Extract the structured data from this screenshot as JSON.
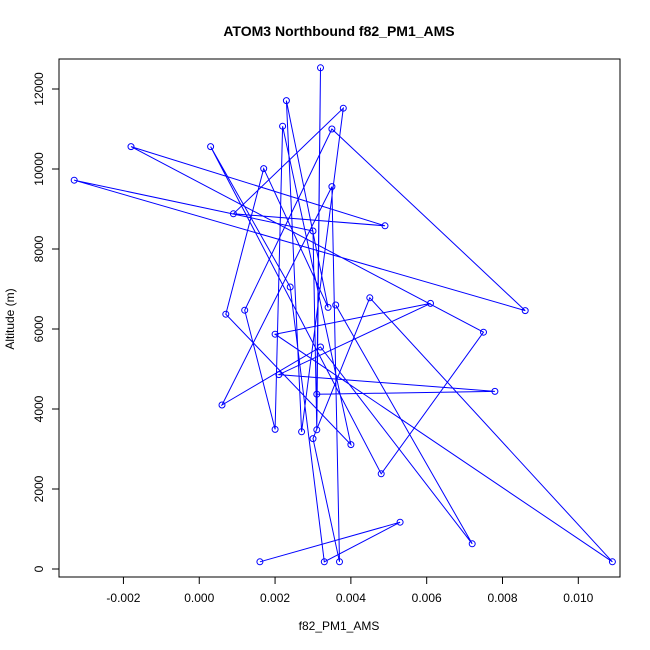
{
  "chart_data": {
    "type": "line",
    "title": "ATOM3 Northbound f82_PM1_AMS",
    "xlabel": "f82_PM1_AMS",
    "ylabel": "Altitude (m)",
    "xlim": [
      -0.0037,
      0.0111
    ],
    "ylim": [
      -200,
      12750
    ],
    "xticks": [
      -0.002,
      0.0,
      0.002,
      0.004,
      0.006,
      0.008,
      0.01
    ],
    "xtick_labels": [
      "-0.002",
      "0.000",
      "0.002",
      "0.004",
      "0.006",
      "0.008",
      "0.010"
    ],
    "yticks": [
      0,
      2000,
      4000,
      6000,
      8000,
      10000,
      12000
    ],
    "ytick_labels": [
      "0",
      "2000",
      "4000",
      "6000",
      "8000",
      "10000",
      "12000"
    ],
    "grid": false,
    "legend": "none",
    "colors": {
      "series": "#0000ff",
      "axis": "#000000"
    },
    "series": [
      {
        "values": [
          [
            0.0016,
            180
          ],
          [
            0.0053,
            1170
          ],
          [
            0.0033,
            180
          ],
          [
            0.0024,
            7050
          ],
          [
            0.0003,
            10560
          ],
          [
            0.0048,
            2380
          ],
          [
            0.0075,
            5920
          ],
          [
            -0.0018,
            10560
          ],
          [
            0.0049,
            8580
          ],
          [
            0.0009,
            8880
          ],
          [
            0.0038,
            11520
          ],
          [
            0.0027,
            3430
          ],
          [
            0.0023,
            11710
          ],
          [
            0.0034,
            6540
          ],
          [
            0.0017,
            10010
          ],
          [
            0.0007,
            6370
          ],
          [
            0.004,
            3110
          ],
          [
            0.0022,
            11070
          ],
          [
            0.002,
            3490
          ],
          [
            0.0012,
            6470
          ],
          [
            0.0035,
            11000
          ],
          [
            0.0086,
            6460
          ],
          [
            -0.0033,
            9720
          ],
          [
            0.003,
            8450
          ],
          [
            0.0031,
            3480
          ],
          [
            0.0032,
            12530
          ],
          [
            0.0031,
            4370
          ],
          [
            0.0078,
            4440
          ],
          [
            0.0021,
            4860
          ],
          [
            0.0061,
            6640
          ],
          [
            0.002,
            5870
          ],
          [
            0.0109,
            180
          ],
          [
            0.0045,
            6780
          ],
          [
            0.003,
            3260
          ],
          [
            0.0037,
            180
          ],
          [
            0.0035,
            9560
          ],
          [
            0.0006,
            4100
          ],
          [
            0.0032,
            5550
          ],
          [
            0.0072,
            630
          ],
          [
            0.0036,
            6600
          ]
        ]
      }
    ]
  }
}
